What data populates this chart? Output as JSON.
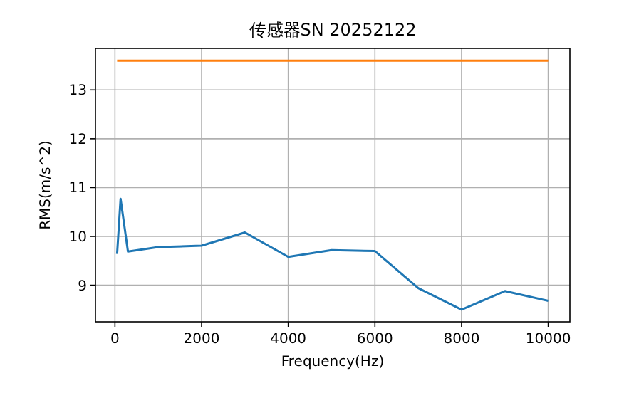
{
  "chart_data": {
    "type": "line",
    "title": "传感器SN 20252122",
    "xlabel": "Frequency(Hz)",
    "ylabel": "RMS(m/s^2)",
    "series": [
      {
        "color": "#1f77b4",
        "x": [
          50,
          130,
          300,
          1000,
          2000,
          3000,
          4000,
          5000,
          6000,
          7000,
          8000,
          9000,
          10000
        ],
        "values": [
          9.64,
          10.77,
          9.69,
          9.78,
          9.81,
          10.08,
          9.58,
          9.72,
          9.7,
          8.94,
          8.5,
          8.88,
          8.68
        ]
      },
      {
        "color": "#ff7f0e",
        "x": [
          50,
          10000
        ],
        "values": [
          13.6,
          13.6
        ]
      }
    ],
    "xlim": [
      -450,
      10500
    ],
    "ylim": [
      8.25,
      13.85
    ],
    "xticks": [
      0,
      2000,
      4000,
      6000,
      8000,
      10000
    ],
    "yticks": [
      9,
      10,
      11,
      12,
      13
    ],
    "grid": true
  }
}
